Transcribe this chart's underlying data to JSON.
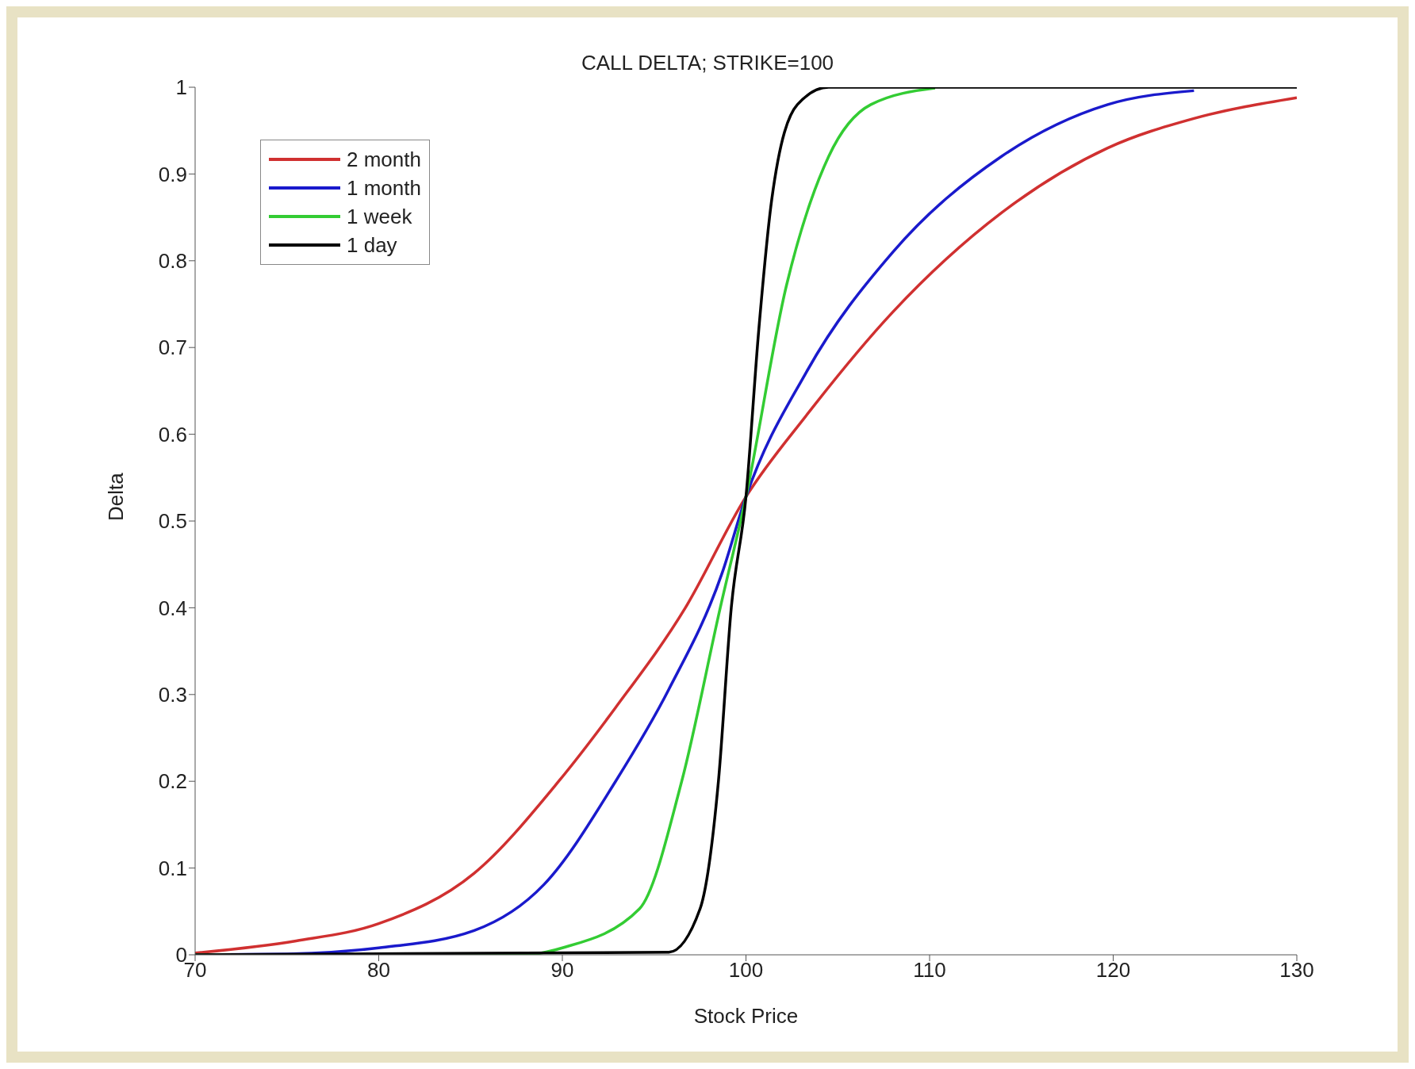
{
  "chart_data": {
    "type": "line",
    "title": "CALL DELTA; STRIKE=100",
    "xlabel": "Stock Price",
    "ylabel": "Delta",
    "xlim": [
      70,
      130
    ],
    "xticks": [
      70,
      80,
      90,
      100,
      110,
      120,
      130
    ],
    "ylim": [
      0,
      1
    ],
    "yticks": [
      0,
      0.1,
      0.2,
      0.3,
      0.4,
      0.5,
      0.6,
      0.7,
      0.8,
      0.9,
      1
    ],
    "grid": false,
    "legend": "top left",
    "marker": "none",
    "line_style": "solid",
    "series": [
      {
        "name": "2 month",
        "color": "#d03030",
        "x": [
          70,
          75.5,
          80,
          85.2,
          89.8,
          92.9,
          96.7,
          100,
          103.3,
          108,
          113.9,
          119.7,
          124.4,
          130
        ],
        "values": [
          0.002,
          0.016,
          0.036,
          0.094,
          0.2,
          0.285,
          0.4,
          0.528,
          0.622,
          0.741,
          0.855,
          0.93,
          0.964,
          0.988
        ]
      },
      {
        "name": "1 month",
        "color": "#1a1acc",
        "x": [
          70,
          75,
          80,
          85.2,
          89,
          92.9,
          95.8,
          98.7,
          100,
          103.3,
          108,
          113.9,
          119.7,
          124.4
        ],
        "values": [
          0,
          0.001,
          0.008,
          0.028,
          0.081,
          0.2,
          0.306,
          0.44,
          0.528,
          0.672,
          0.81,
          0.92,
          0.98,
          0.996
        ]
      },
      {
        "name": "1 week",
        "color": "#33cc33",
        "x": [
          70,
          88,
          90,
          94.2,
          96.5,
          98.6,
          100,
          102.2,
          104.5,
          106.8,
          110.3
        ],
        "values": [
          0,
          0,
          0.008,
          0.053,
          0.2,
          0.4,
          0.528,
          0.771,
          0.92,
          0.98,
          0.999
        ]
      },
      {
        "name": "1 day",
        "color": "#000000",
        "x": [
          70,
          95.8,
          97.5,
          98.5,
          99.2,
          100,
          100.7,
          101.4,
          102.8,
          104.5,
          130
        ],
        "values": [
          0,
          0.003,
          0.053,
          0.2,
          0.4,
          0.528,
          0.721,
          0.87,
          0.98,
          1,
          1
        ]
      }
    ]
  }
}
